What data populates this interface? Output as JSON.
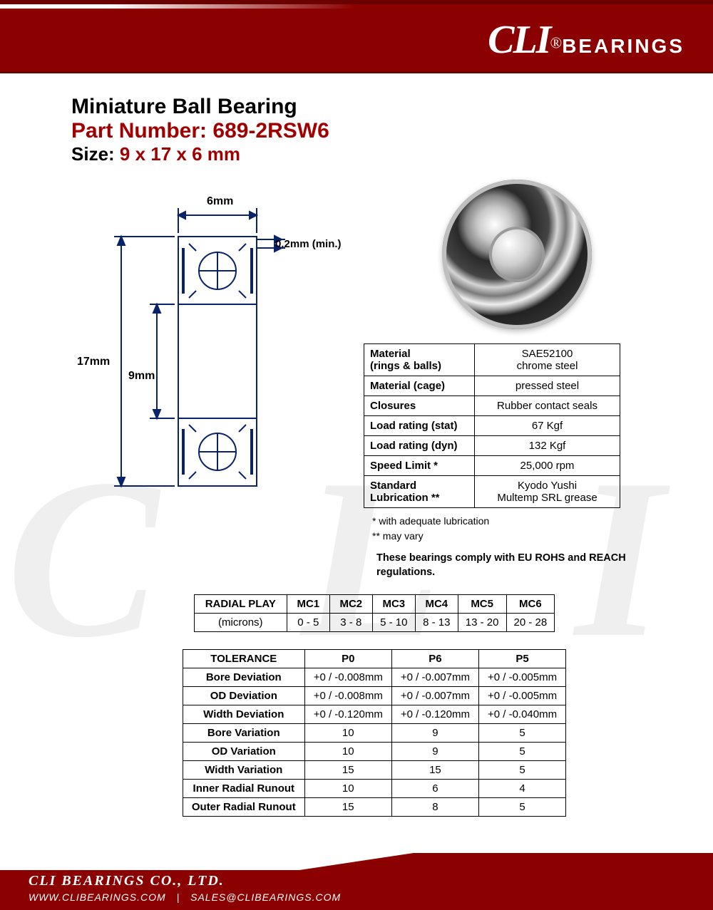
{
  "brand": {
    "logo_primary": "CLI",
    "logo_reg": "®",
    "logo_secondary": "BEARINGS",
    "color_primary": "#8b0000",
    "color_accent": "#a00000",
    "text_color": "#000000"
  },
  "title": {
    "line1": "Miniature Ball Bearing",
    "line2_label": "Part Number:",
    "line2_value": "689-2RSW6",
    "line3_label": "Size:",
    "line3_value": "9 x 17 x 6 mm"
  },
  "diagram": {
    "width_label": "6mm",
    "chamfer_label": "0.2mm (min.)",
    "od_label": "17mm",
    "id_label": "9mm",
    "line_color": "#09236b",
    "line_width": 2
  },
  "spec_table": {
    "rows": [
      {
        "label": "Material\n(rings & balls)",
        "value": "SAE52100\nchrome steel"
      },
      {
        "label": "Material (cage)",
        "value": "pressed steel"
      },
      {
        "label": "Closures",
        "value": "Rubber contact seals"
      },
      {
        "label": "Load rating (stat)",
        "value": "67 Kgf"
      },
      {
        "label": "Load rating (dyn)",
        "value": "132 Kgf"
      },
      {
        "label": "Speed Limit *",
        "value": "25,000 rpm"
      },
      {
        "label": "Standard\nLubrication  **",
        "value": "Kyodo Yushi\nMultemp SRL grease"
      }
    ],
    "note1": " * with adequate lubrication",
    "note2": "** may vary",
    "compliance": "These bearings comply with EU ROHS and REACH  regulations."
  },
  "radial_play": {
    "header_label": "RADIAL PLAY",
    "unit_label": "(microns)",
    "columns": [
      "MC1",
      "MC2",
      "MC3",
      "MC4",
      "MC5",
      "MC6"
    ],
    "values": [
      "0 - 5",
      "3 - 8",
      "5 - 10",
      "8 - 13",
      "13 - 20",
      "20 - 28"
    ]
  },
  "tolerance": {
    "header_label": "TOLERANCE",
    "columns": [
      "P0",
      "P6",
      "P5"
    ],
    "rows": [
      {
        "label": "Bore Deviation",
        "vals": [
          "+0 / -0.008mm",
          "+0 / -0.007mm",
          "+0 / -0.005mm"
        ]
      },
      {
        "label": "OD Deviation",
        "vals": [
          "+0 / -0.008mm",
          "+0 / -0.007mm",
          "+0 / -0.005mm"
        ]
      },
      {
        "label": "Width Deviation",
        "vals": [
          "+0 / -0.120mm",
          "+0 / -0.120mm",
          "+0 / -0.040mm"
        ]
      },
      {
        "label": "Bore Variation",
        "vals": [
          "10",
          "9",
          "5"
        ]
      },
      {
        "label": "OD Variation",
        "vals": [
          "10",
          "9",
          "5"
        ]
      },
      {
        "label": "Width Variation",
        "vals": [
          "15",
          "15",
          "5"
        ]
      },
      {
        "label": "Inner Radial Runout",
        "vals": [
          "10",
          "6",
          "4"
        ]
      },
      {
        "label": "Outer Radial Runout",
        "vals": [
          "15",
          "8",
          "5"
        ]
      }
    ]
  },
  "footer": {
    "company": "CLI BEARINGS CO., LTD.",
    "website": "WWW.CLIBEARINGS.COM",
    "email": "SALES@CLIBEARINGS.COM"
  }
}
